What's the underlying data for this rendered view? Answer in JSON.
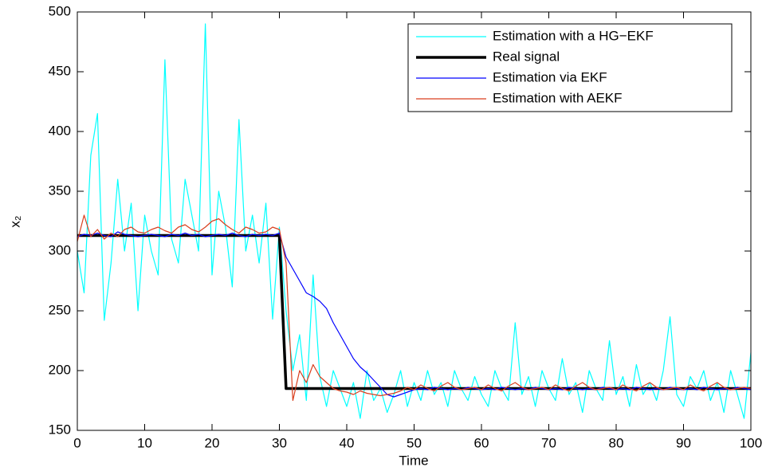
{
  "chart_data": {
    "type": "line",
    "xlabel": "Time",
    "ylabel": "x₂",
    "x": [
      0,
      1,
      2,
      3,
      4,
      5,
      6,
      7,
      8,
      9,
      10,
      11,
      12,
      13,
      14,
      15,
      16,
      17,
      18,
      19,
      20,
      21,
      22,
      23,
      24,
      25,
      26,
      27,
      28,
      29,
      30,
      31,
      32,
      33,
      34,
      35,
      36,
      37,
      38,
      39,
      40,
      41,
      42,
      43,
      44,
      45,
      46,
      47,
      48,
      49,
      50,
      51,
      52,
      53,
      54,
      55,
      56,
      57,
      58,
      59,
      60,
      61,
      62,
      63,
      64,
      65,
      66,
      67,
      68,
      69,
      70,
      71,
      72,
      73,
      74,
      75,
      76,
      77,
      78,
      79,
      80,
      81,
      82,
      83,
      84,
      85,
      86,
      87,
      88,
      89,
      90,
      91,
      92,
      93,
      94,
      95,
      96,
      97,
      98,
      99,
      100
    ],
    "series": [
      {
        "name": "Estimation with a HG−EKF",
        "color": "#00ffff",
        "width": 1.2,
        "values": [
          300,
          265,
          380,
          415,
          242,
          290,
          360,
          300,
          340,
          250,
          330,
          300,
          280,
          460,
          310,
          290,
          360,
          330,
          300,
          490,
          280,
          350,
          320,
          270,
          410,
          300,
          330,
          290,
          340,
          243,
          320,
          250,
          200,
          230,
          175,
          280,
          195,
          170,
          200,
          185,
          170,
          190,
          160,
          200,
          175,
          185,
          165,
          180,
          200,
          170,
          190,
          175,
          200,
          180,
          190,
          170,
          200,
          185,
          175,
          195,
          180,
          170,
          200,
          185,
          175,
          240,
          180,
          195,
          170,
          200,
          185,
          175,
          210,
          180,
          190,
          165,
          200,
          185,
          175,
          225,
          180,
          195,
          170,
          205,
          180,
          190,
          175,
          200,
          245,
          180,
          170,
          195,
          185,
          200,
          175,
          190,
          165,
          200,
          180,
          160,
          215
        ]
      },
      {
        "name": "Real signal",
        "color": "#000000",
        "width": 3.5,
        "values": [
          313,
          313,
          313,
          313,
          313,
          313,
          313,
          313,
          313,
          313,
          313,
          313,
          313,
          313,
          313,
          313,
          313,
          313,
          313,
          313,
          313,
          313,
          313,
          313,
          313,
          313,
          313,
          313,
          313,
          313,
          313,
          185,
          185,
          185,
          185,
          185,
          185,
          185,
          185,
          185,
          185,
          185,
          185,
          185,
          185,
          185,
          185,
          185,
          185,
          185,
          185,
          185,
          185,
          185,
          185,
          185,
          185,
          185,
          185,
          185,
          185,
          185,
          185,
          185,
          185,
          185,
          185,
          185,
          185,
          185,
          185,
          185,
          185,
          185,
          185,
          185,
          185,
          185,
          185,
          185,
          185,
          185,
          185,
          185,
          185,
          185,
          185,
          185,
          185,
          185,
          185,
          185,
          185,
          185,
          185,
          185,
          185,
          185,
          185,
          185,
          185
        ]
      },
      {
        "name": "Estimation via EKF",
        "color": "#0000ff",
        "width": 1.2,
        "values": [
          312,
          314,
          313,
          315,
          313,
          312,
          316,
          314,
          313,
          312,
          313,
          314,
          313,
          312,
          314,
          313,
          315,
          313,
          314,
          312,
          313,
          314,
          313,
          315,
          313,
          312,
          314,
          313,
          314,
          313,
          315,
          295,
          285,
          275,
          265,
          262,
          258,
          252,
          240,
          230,
          220,
          210,
          203,
          198,
          192,
          186,
          180,
          178,
          180,
          182,
          184,
          185,
          184,
          186,
          185,
          184,
          185,
          184,
          186,
          185,
          184,
          185,
          184,
          186,
          185,
          184,
          185,
          184,
          186,
          185,
          184,
          185,
          184,
          186,
          185,
          184,
          185,
          184,
          186,
          185,
          184,
          185,
          184,
          186,
          185,
          184,
          185,
          184,
          186,
          185,
          184,
          185,
          184,
          186,
          185,
          184,
          185,
          184,
          186,
          185,
          184
        ]
      },
      {
        "name": "Estimation with AEKF",
        "color": "#d93f1e",
        "width": 1.2,
        "values": [
          308,
          330,
          312,
          318,
          310,
          315,
          312,
          318,
          320,
          316,
          315,
          318,
          320,
          317,
          315,
          320,
          322,
          318,
          316,
          320,
          325,
          327,
          322,
          318,
          315,
          320,
          318,
          315,
          316,
          320,
          318,
          290,
          175,
          200,
          190,
          205,
          195,
          190,
          185,
          183,
          182,
          180,
          183,
          181,
          180,
          179,
          180,
          181,
          183,
          186,
          184,
          188,
          185,
          183,
          187,
          190,
          186,
          184,
          185,
          186,
          184,
          188,
          185,
          183,
          187,
          190,
          186,
          184,
          185,
          186,
          184,
          188,
          185,
          183,
          187,
          190,
          186,
          184,
          185,
          186,
          184,
          188,
          185,
          183,
          187,
          190,
          186,
          184,
          185,
          186,
          184,
          188,
          185,
          183,
          187,
          190,
          186,
          184,
          185,
          186,
          185
        ]
      }
    ],
    "xlim": [
      0,
      100
    ],
    "xticks": [
      0,
      10,
      20,
      30,
      40,
      50,
      60,
      70,
      80,
      90,
      100
    ],
    "ylim": [
      150,
      500
    ],
    "yticks": [
      150,
      200,
      250,
      300,
      350,
      400,
      450,
      500
    ],
    "grid": false,
    "legend": "upper right"
  }
}
